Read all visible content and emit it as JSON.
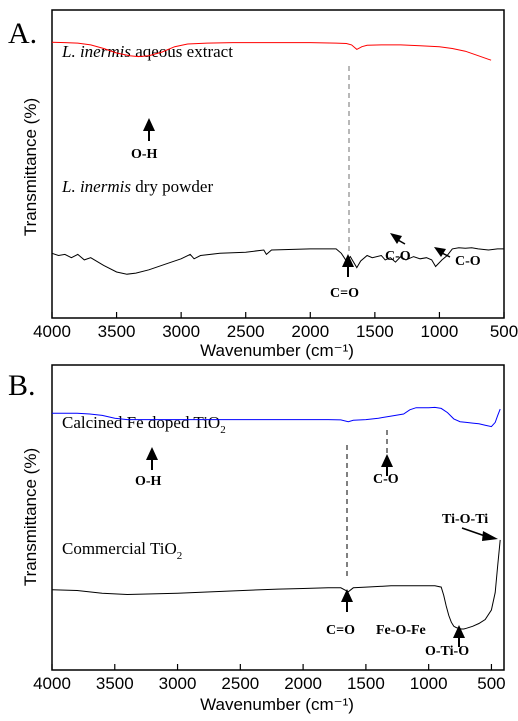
{
  "chart_data": [
    {
      "panel": "A.",
      "type": "line",
      "xlabel": "Wavenumber (cm⁻¹)",
      "ylabel": "Transmittance (%)",
      "xlim": [
        4000,
        500
      ],
      "x_reversed": true,
      "x_ticks": [
        4000,
        3500,
        3000,
        2500,
        2000,
        1500,
        1000,
        500
      ],
      "ylim": [
        0,
        100
      ],
      "series": [
        {
          "label_italic": "L. inermis",
          "label_rest": " aqeous extract",
          "color": "#ff0000",
          "x": [
            4000,
            3900,
            3800,
            3700,
            3600,
            3500,
            3400,
            3330,
            3250,
            3150,
            3050,
            2950,
            2800,
            2600,
            2300,
            2000,
            1800,
            1720,
            1680,
            1640,
            1600,
            1560,
            1450,
            1300,
            1150,
            1000,
            900,
            800,
            700,
            620,
            600
          ],
          "y": [
            92,
            91.5,
            91,
            89,
            85,
            80,
            77,
            76,
            77,
            81,
            87,
            90,
            91,
            91.5,
            91.5,
            91.5,
            91,
            90.5,
            89,
            84,
            87,
            88.5,
            89,
            89,
            88,
            87,
            85,
            82,
            77,
            73,
            72
          ]
        },
        {
          "label_italic": "L. inermis",
          "label_rest": " dry powder",
          "color": "#000000",
          "x": [
            4000,
            3950,
            3900,
            3850,
            3800,
            3750,
            3700,
            3600,
            3500,
            3420,
            3350,
            3250,
            3100,
            3000,
            2930,
            2900,
            2850,
            2700,
            2500,
            2360,
            2340,
            2300,
            2000,
            1800,
            1760,
            1720,
            1690,
            1640,
            1610,
            1560,
            1520,
            1450,
            1420,
            1380,
            1340,
            1300,
            1260,
            1200,
            1150,
            1100,
            1060,
            1030,
            980,
            940,
            900,
            850,
            800,
            750,
            700,
            620,
            550,
            500
          ],
          "y": [
            47,
            45,
            46,
            43,
            46,
            41,
            43,
            36,
            30,
            28,
            29,
            32,
            38,
            42,
            46,
            42,
            45,
            47,
            48,
            50,
            46,
            50,
            51,
            51,
            47,
            40,
            44,
            34,
            40,
            45,
            43,
            45,
            41,
            43,
            39,
            44,
            41,
            44,
            42,
            43,
            41,
            35,
            41,
            45,
            51,
            52,
            51.5,
            52,
            51,
            50,
            51,
            51
          ]
        }
      ],
      "annotations": [
        {
          "text": "O-H",
          "x": 3330
        },
        {
          "text": "C=O",
          "x": 1720
        },
        {
          "text": "C-O",
          "x": 1420
        },
        {
          "text": "C-O",
          "x": 1050
        }
      ],
      "dashed_line_x": 1720
    },
    {
      "panel": "B.",
      "type": "line",
      "xlabel": "Wavenumber (cm⁻¹)",
      "ylabel": "Transmittance (%)",
      "xlim": [
        4000,
        400
      ],
      "x_reversed": true,
      "x_ticks": [
        4000,
        3500,
        3000,
        2500,
        2000,
        1500,
        1000,
        500
      ],
      "ylim": [
        0,
        100
      ],
      "series": [
        {
          "label_main": "Calcined Fe doped TiO",
          "label_sub": "2",
          "color": "#0000ff",
          "x": [
            4000,
            3900,
            3800,
            3700,
            3600,
            3500,
            3400,
            3300,
            3200,
            3000,
            2800,
            2500,
            2200,
            2000,
            1800,
            1700,
            1640,
            1600,
            1500,
            1400,
            1300,
            1200,
            1150,
            1100,
            1000,
            950,
            900,
            850,
            800,
            750,
            700,
            650,
            600,
            550,
            500,
            470,
            450,
            430
          ],
          "y": [
            81,
            81,
            81,
            80,
            78,
            74,
            72,
            72,
            72,
            72,
            72,
            72,
            72,
            72,
            72,
            71.5,
            69,
            71,
            72,
            74,
            77,
            80,
            86,
            89,
            89,
            89.5,
            88,
            82,
            73,
            69,
            68,
            67,
            66,
            64,
            62,
            68,
            78,
            87
          ]
        },
        {
          "label_main": "Commercial TiO",
          "label_sub": "2",
          "color": "#000000",
          "x": [
            4000,
            3800,
            3600,
            3400,
            3000,
            2600,
            2200,
            2000,
            1800,
            1700,
            1640,
            1600,
            1500,
            1300,
            1100,
            1000,
            950,
            900,
            880,
            860,
            840,
            820,
            800,
            780,
            760,
            740,
            720,
            700,
            650,
            600,
            550,
            500,
            470,
            450,
            430
          ],
          "y": [
            52,
            51.5,
            49.5,
            48.5,
            49.5,
            51,
            52.5,
            53,
            53.5,
            53.5,
            50.5,
            53.5,
            54,
            55,
            55,
            55,
            55,
            54,
            48,
            40,
            33,
            28,
            25,
            24,
            23.5,
            23,
            23,
            23.5,
            25,
            27,
            30,
            37,
            50,
            70,
            89
          ]
        }
      ],
      "annotations": [
        {
          "text": "O-H",
          "x": 3200
        },
        {
          "text": "C-O",
          "x": 1300
        },
        {
          "text": "C=O",
          "x": 1640
        },
        {
          "text": "Fe-O-Fe",
          "x": 980
        },
        {
          "text": "O-Ti-O",
          "x": 760
        },
        {
          "text": "Ti-O-Ti",
          "x": 600
        }
      ],
      "dashed_lines_x": [
        1640,
        1300
      ]
    }
  ]
}
